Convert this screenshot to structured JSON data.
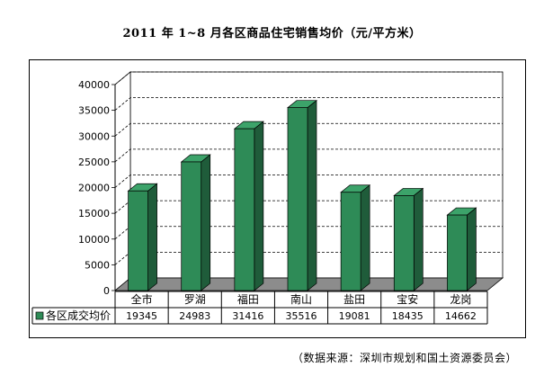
{
  "chart_data": {
    "type": "bar",
    "title": "2011 年 1~8 月各区商品住宅销售均价（元/平方米）",
    "categories": [
      "全市",
      "罗湖",
      "福田",
      "南山",
      "盐田",
      "宝安",
      "龙岗"
    ],
    "series": [
      {
        "name": "各区成交均价",
        "values": [
          19345,
          24983,
          31416,
          35516,
          19081,
          18435,
          14662
        ]
      }
    ],
    "ylim": [
      0,
      40000
    ],
    "yticks": [
      0,
      5000,
      10000,
      15000,
      20000,
      25000,
      30000,
      35000,
      40000
    ],
    "grid": true,
    "legend": "data-table-left",
    "colors": {
      "bar_front": "#2e8b57",
      "bar_side": "#1f5c3a",
      "bar_top": "#3ca36a",
      "floor": "#8c8c8c"
    }
  },
  "source_note": "（数据来源：深圳市规划和国土资源委员会）"
}
